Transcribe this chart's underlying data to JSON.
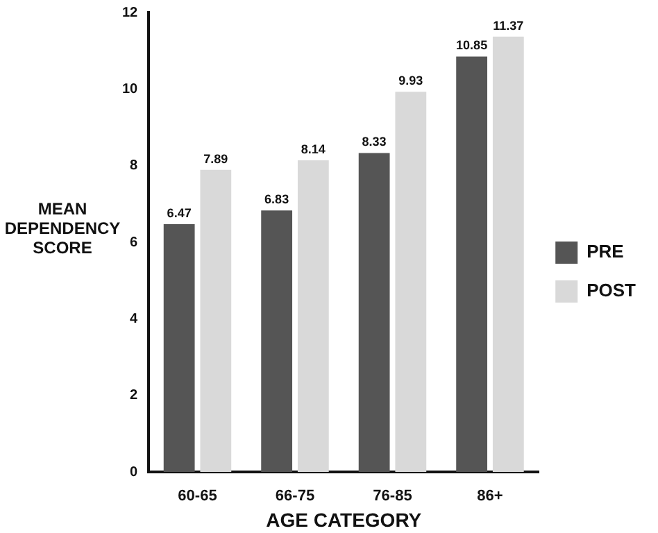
{
  "chart_data": {
    "type": "bar",
    "xlabel": "AGE CATEGORY",
    "ylabel": "MEAN DEPENDENCY SCORE",
    "categories": [
      "60-65",
      "66-75",
      "76-85",
      "86+"
    ],
    "series": [
      {
        "name": "PRE",
        "color": "#555555",
        "values": [
          6.47,
          6.83,
          8.33,
          10.85
        ]
      },
      {
        "name": "POST",
        "color": "#d9d9d9",
        "values": [
          7.89,
          8.14,
          9.93,
          11.37
        ]
      }
    ],
    "ylim": [
      0,
      12
    ],
    "yticks": [
      0,
      2,
      4,
      6,
      8,
      10,
      12
    ],
    "grid": false,
    "legend": "right",
    "data_labels": true
  }
}
